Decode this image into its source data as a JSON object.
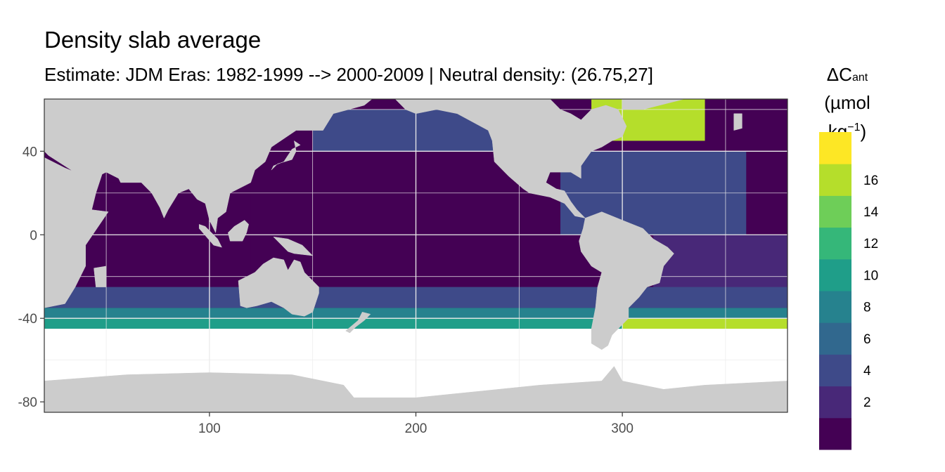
{
  "chart_data": {
    "type": "heatmap",
    "title": "Density slab average",
    "subtitle": "Estimate: JDM Eras: 1982-1999 --> 2000-2009 | Neutral density: (26.75,27]",
    "legend": {
      "title_main": "ΔC",
      "title_sub": "ant",
      "title_unit_prefix": "(µmol kg",
      "title_unit_sup": "−1",
      "title_unit_suffix": ")",
      "placement": "right",
      "breaks": [
        2,
        4,
        6,
        8,
        10,
        12,
        14,
        16
      ],
      "colors": [
        "#440154",
        "#482878",
        "#3e4a89",
        "#31688e",
        "#26828e",
        "#1f9e89",
        "#35b779",
        "#6ece58",
        "#b5de2b",
        "#fde725"
      ]
    },
    "x_ticks": [
      100,
      200,
      300
    ],
    "y_ticks": [
      40,
      0,
      -40,
      -80
    ],
    "xlim": [
      20,
      380
    ],
    "ylim": [
      -85,
      65
    ],
    "grid": true,
    "land_color": "#cccccc",
    "nodata_color": "#ffffff",
    "approx_field_bands": [
      {
        "region": "Pacific tropics and subtropics",
        "lat": [
          -30,
          55
        ],
        "value": 1
      },
      {
        "region": "North Pacific subpolar",
        "lat": [
          40,
          60
        ],
        "value": 5
      },
      {
        "region": "North Atlantic subtropics",
        "lat": [
          0,
          40
        ],
        "value": 4
      },
      {
        "region": "North Atlantic subpolar",
        "lat": [
          45,
          65
        ],
        "value": 17
      },
      {
        "region": "South Atlantic subtropics",
        "lat": [
          -30,
          0
        ],
        "value": 3
      },
      {
        "region": "Indian Ocean tropics",
        "lat": [
          -10,
          25
        ],
        "value": 1
      },
      {
        "region": "Southern mid-latitudes",
        "lat": [
          -35,
          -25
        ],
        "value": 5
      },
      {
        "region": "Southern Ocean northern band",
        "lat": [
          -40,
          -35
        ],
        "value": 8
      },
      {
        "region": "Southern Ocean southern band",
        "lat": [
          -45,
          -40
        ],
        "value": 10
      },
      {
        "region": "Argentine Basin",
        "lat": [
          -45,
          -40
        ],
        "value": 17
      }
    ]
  }
}
